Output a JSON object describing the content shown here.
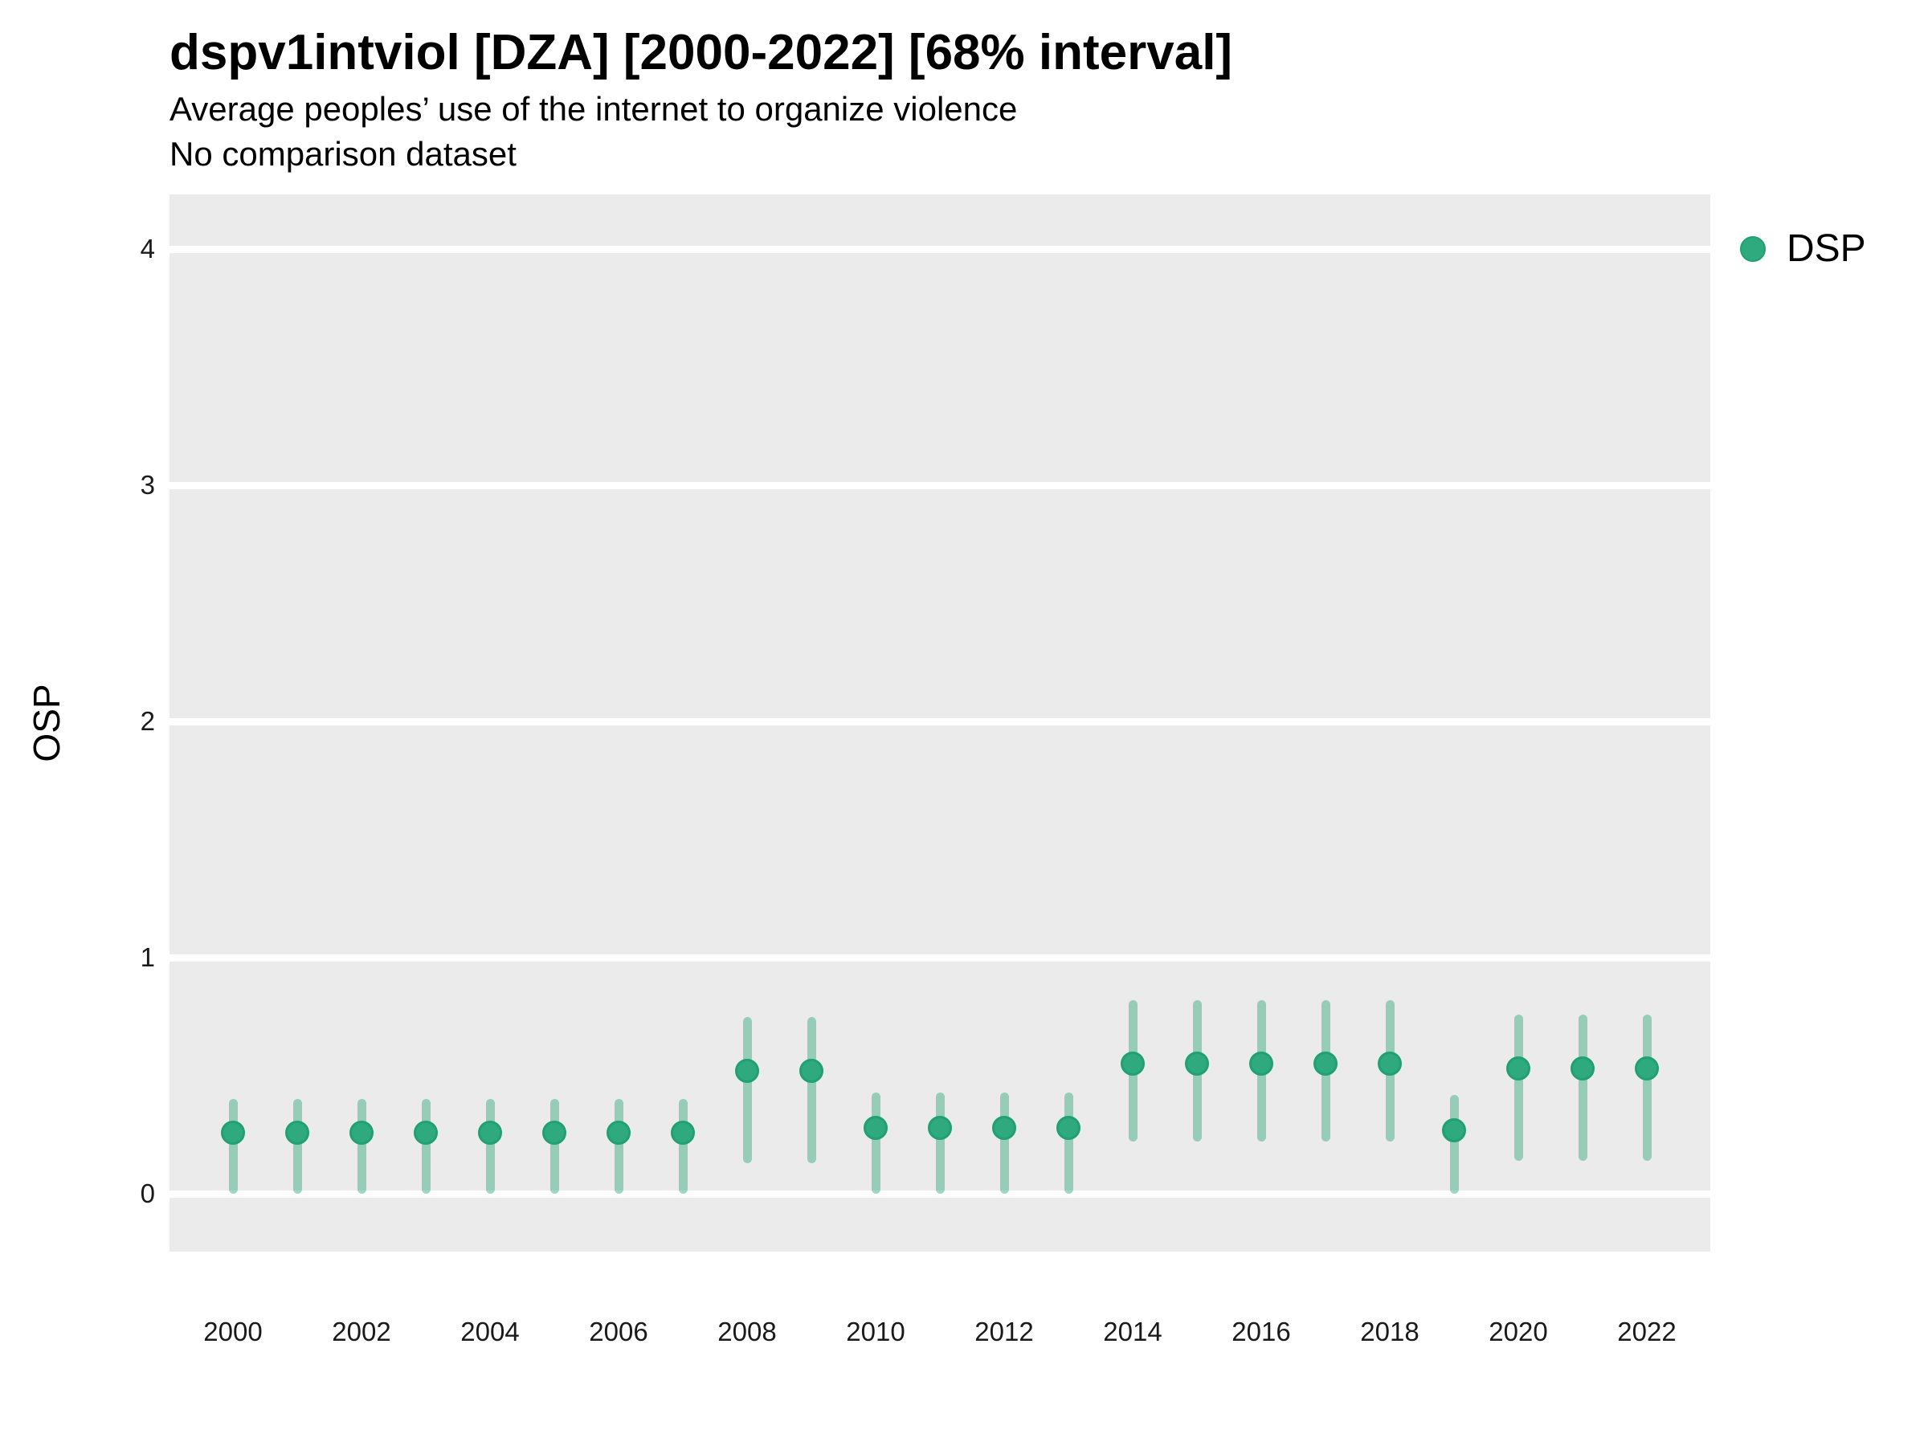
{
  "header": {
    "title": "dspv1intviol [DZA] [2000-2022] [68% interval]",
    "subtitle": "Average peoples’ use of the internet to organize violence",
    "note": "No comparison dataset"
  },
  "y_axis": {
    "label": "OSP"
  },
  "legend": {
    "label": "DSP",
    "dot_color": "#2FAA7E",
    "position": "right"
  },
  "colors": {
    "panel_background": "#EBEBEB",
    "gridline": "#FFFFFF",
    "point_fill": "#2FAA7E",
    "point_stroke": "#1FA173",
    "interval_bar": "rgba(47,169,124,0.45)",
    "page_background": "#FFFFFF",
    "text": "#000000"
  },
  "chart_data": {
    "type": "scatter",
    "title": "dspv1intviol [DZA] [2000-2022] [68% interval]",
    "subtitle": "Average peoples’ use of the internet to organize violence",
    "note": "No comparison dataset",
    "xlabel": "",
    "ylabel": "OSP",
    "interval_level": "68%",
    "x": [
      2000,
      2001,
      2002,
      2003,
      2004,
      2005,
      2006,
      2007,
      2008,
      2009,
      2010,
      2011,
      2012,
      2013,
      2014,
      2015,
      2016,
      2017,
      2018,
      2019,
      2020,
      2021,
      2022
    ],
    "series": [
      {
        "name": "DSP",
        "values": [
          0.26,
          0.26,
          0.26,
          0.26,
          0.26,
          0.26,
          0.26,
          0.26,
          0.52,
          0.52,
          0.28,
          0.28,
          0.28,
          0.28,
          0.55,
          0.55,
          0.55,
          0.55,
          0.55,
          0.27,
          0.53,
          0.53,
          0.53
        ],
        "interval_low": [
          0.0,
          0.0,
          0.0,
          0.0,
          0.0,
          0.0,
          0.0,
          0.0,
          0.13,
          0.13,
          0.0,
          0.0,
          0.0,
          0.0,
          0.22,
          0.22,
          0.22,
          0.22,
          0.22,
          0.0,
          0.14,
          0.14,
          0.14
        ],
        "interval_high": [
          0.4,
          0.4,
          0.4,
          0.4,
          0.4,
          0.4,
          0.4,
          0.4,
          0.75,
          0.75,
          0.43,
          0.43,
          0.43,
          0.43,
          0.82,
          0.82,
          0.82,
          0.82,
          0.82,
          0.42,
          0.76,
          0.76,
          0.76
        ]
      }
    ],
    "ylim": [
      -0.25,
      4.23
    ],
    "yticks": [
      0,
      1,
      2,
      3,
      4
    ],
    "xticks": [
      2000,
      2002,
      2004,
      2006,
      2008,
      2010,
      2012,
      2014,
      2016,
      2018,
      2020,
      2022
    ],
    "grid": "horizontal-major-only",
    "legend_position": "right"
  }
}
